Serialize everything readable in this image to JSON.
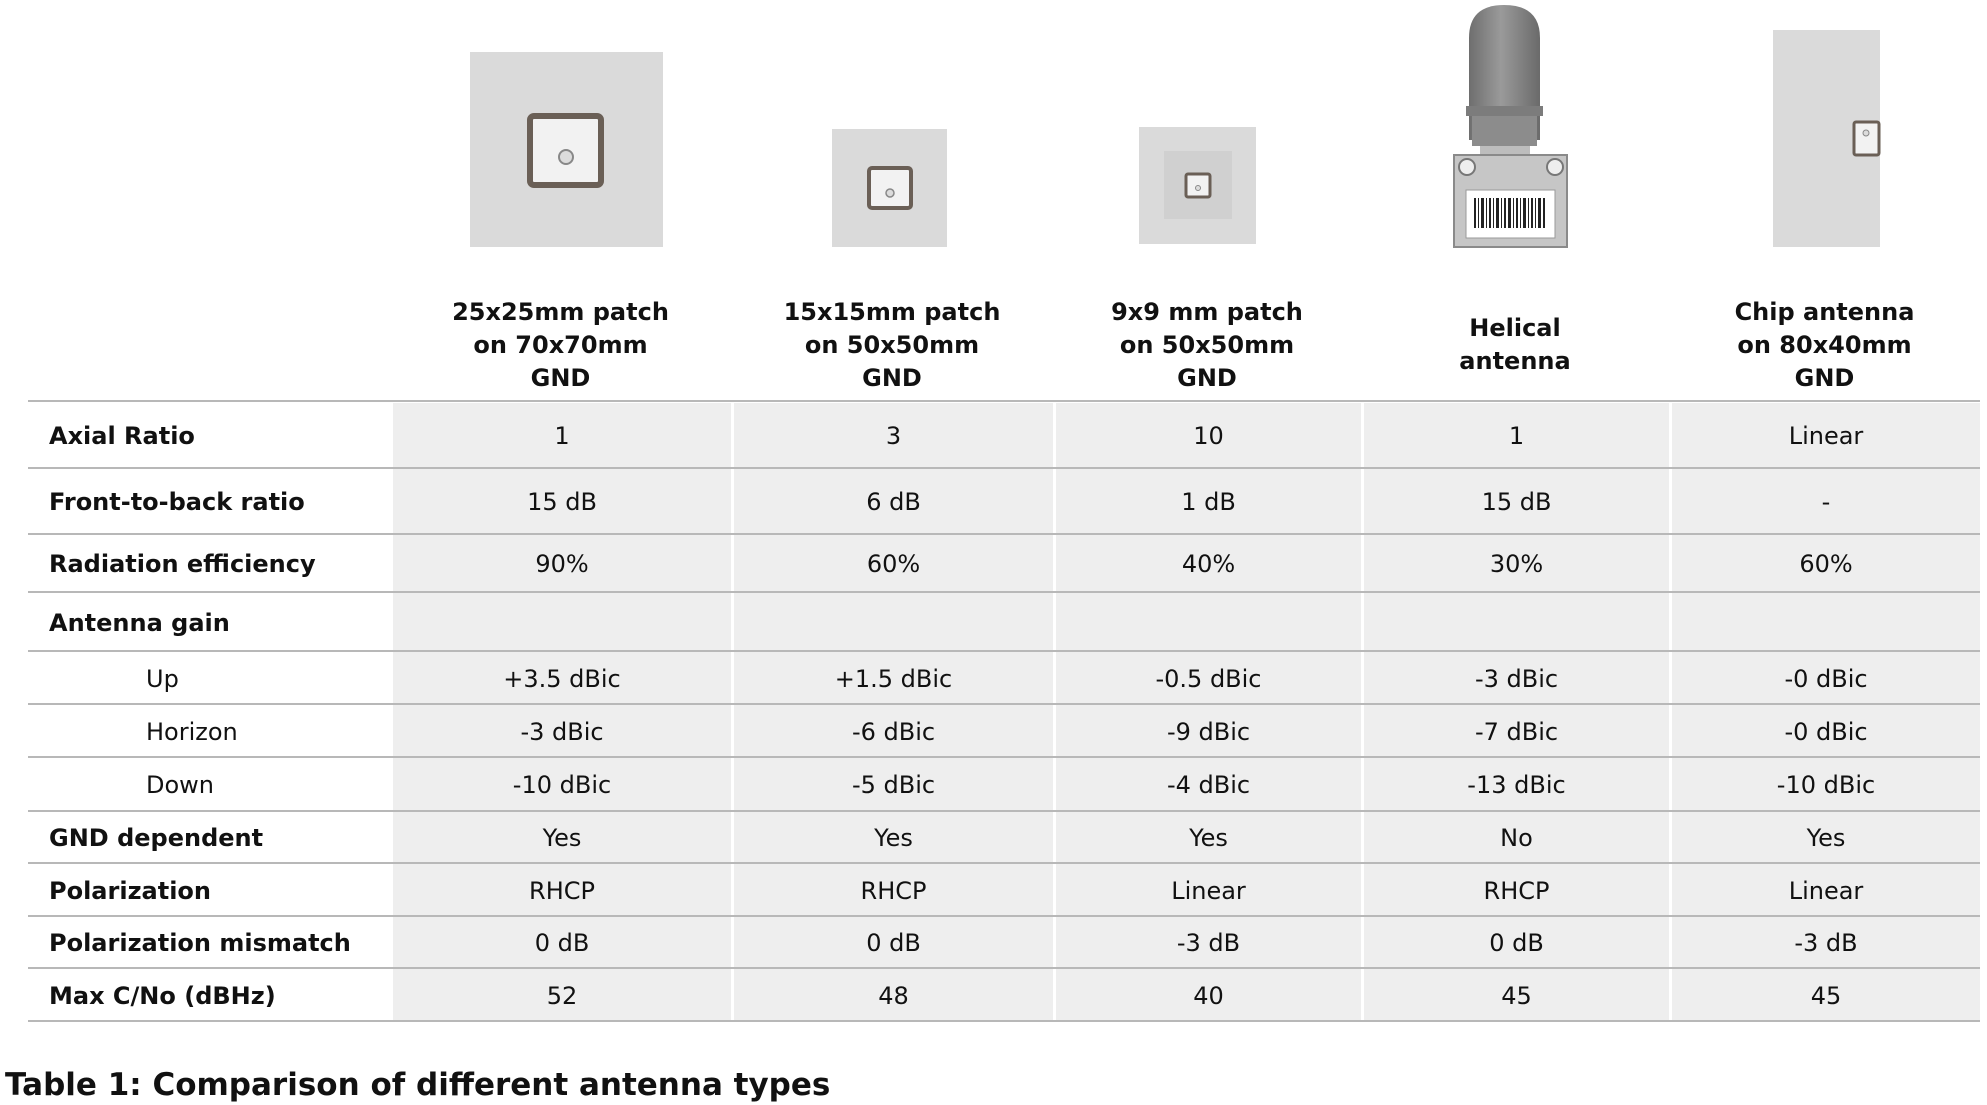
{
  "columns": [
    {
      "title": [
        "25x25mm patch",
        "on 70x70mm",
        "GND"
      ],
      "icon": "patch-antenna-25mm-icon"
    },
    {
      "title": [
        "15x15mm patch",
        "on 50x50mm",
        "GND"
      ],
      "icon": "patch-antenna-15mm-icon"
    },
    {
      "title": [
        "9x9 mm patch",
        "on 50x50mm",
        "GND"
      ],
      "icon": "patch-antenna-9mm-icon"
    },
    {
      "title": [
        "Helical",
        "antenna"
      ],
      "icon": "helical-antenna-icon"
    },
    {
      "title": [
        "Chip antenna",
        "on 80x40mm",
        "GND"
      ],
      "icon": "chip-antenna-icon"
    }
  ],
  "rows": [
    {
      "label": "Axial Ratio",
      "sub": false,
      "values": [
        "1",
        "3",
        "10",
        "1",
        "Linear"
      ]
    },
    {
      "label": "Front-to-back  ratio",
      "sub": false,
      "values": [
        "15 dB",
        "6 dB",
        "1 dB",
        "15 dB",
        "-"
      ]
    },
    {
      "label": "Radiation efficiency",
      "sub": false,
      "values": [
        "90%",
        "60%",
        "40%",
        "30%",
        "60%"
      ]
    },
    {
      "label": "Antenna gain",
      "sub": false,
      "values": [
        "",
        "",
        "",
        "",
        ""
      ]
    },
    {
      "label": "Up",
      "sub": true,
      "values": [
        "+3.5 dBic",
        "+1.5 dBic",
        "-0.5 dBic",
        "-3 dBic",
        "-0 dBic"
      ]
    },
    {
      "label": "Horizon",
      "sub": true,
      "values": [
        "-3 dBic",
        "-6 dBic",
        "-9 dBic",
        "-7 dBic",
        "-0 dBic"
      ]
    },
    {
      "label": "Down",
      "sub": true,
      "values": [
        "-10 dBic",
        "-5 dBic",
        "-4 dBic",
        "-13 dBic",
        "-10 dBic"
      ]
    },
    {
      "label": "GND dependent",
      "sub": false,
      "values": [
        "Yes",
        "Yes",
        "Yes",
        "No",
        "Yes"
      ]
    },
    {
      "label": "Polarization",
      "sub": false,
      "values": [
        "RHCP",
        "RHCP",
        "Linear",
        "RHCP",
        "Linear"
      ]
    },
    {
      "label": "Polarization mismatch",
      "sub": false,
      "values": [
        "0 dB",
        "0 dB",
        "-3 dB",
        "0 dB",
        "-3 dB"
      ]
    },
    {
      "label": "Max C/No (dBHz)",
      "sub": false,
      "values": [
        "52",
        "48",
        "40",
        "45",
        "45"
      ]
    }
  ],
  "caption": "Table 1: Comparison of different antenna types"
}
